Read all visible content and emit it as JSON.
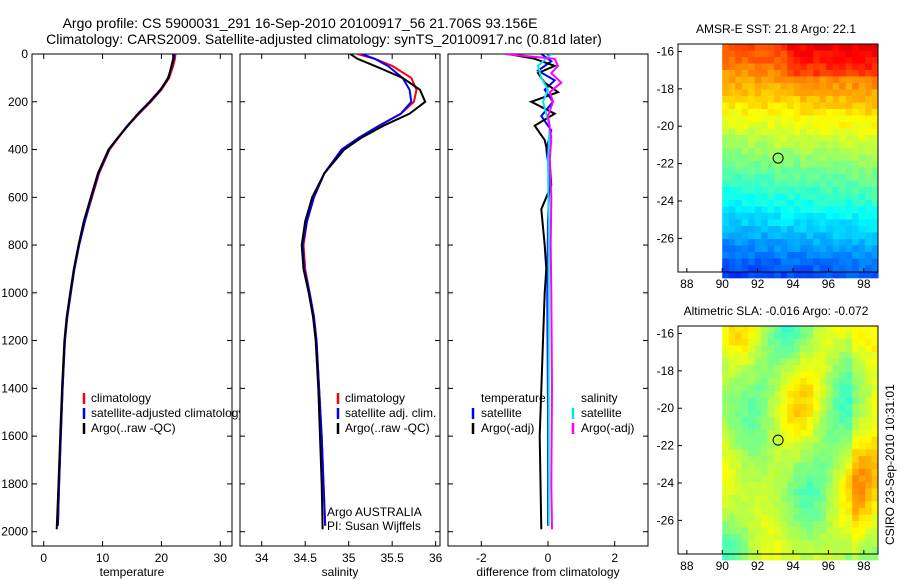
{
  "header": {
    "line1": "Argo profile: CS 5900031_291 16-Sep-2010 20100917_56 21.706S 93.156E",
    "line2": "Climatology: CARS2009. Satellite-adjusted climatology: synTS_20100917.nc (0.81d later)"
  },
  "footer_stamp": "CSIRO 23-Sep-2010 10:31:01",
  "colors": {
    "climatology": "#ff0000",
    "satellite": "#0000ff",
    "argo": "#000000",
    "satellite_salinity_diff": "#00e5e5",
    "argo_salinity_diff": "#ff00ff"
  },
  "chart_data": [
    {
      "id": "temperature",
      "type": "line",
      "xlabel": "temperature",
      "xlim": [
        -2,
        32
      ],
      "ylim": [
        0,
        2060
      ],
      "y_inverted": true,
      "xticks": [
        0,
        10,
        20,
        30
      ],
      "yticks": [
        0,
        200,
        400,
        600,
        800,
        1000,
        1200,
        1400,
        1600,
        1800,
        2000
      ],
      "legend": [
        "climatology",
        "satellite-adjusted climatology",
        "Argo(..raw -QC)"
      ],
      "series": [
        {
          "name": "climatology",
          "color": "#ff0000",
          "x": [
            22.4,
            22.3,
            22.0,
            21.3,
            20.0,
            18.2,
            16.2,
            14.3,
            12.7,
            11.2,
            9.4,
            8.2,
            7.0,
            6.0,
            5.2,
            4.6,
            4.0,
            3.6,
            3.2,
            2.9,
            2.6,
            2.4
          ],
          "y": [
            0,
            20,
            50,
            100,
            150,
            200,
            250,
            300,
            350,
            400,
            500,
            600,
            700,
            800,
            900,
            1000,
            1100,
            1200,
            1400,
            1600,
            1800,
            1975
          ]
        },
        {
          "name": "satellite-adjusted climatology",
          "color": "#0000ff",
          "x": [
            22.2,
            22.1,
            21.8,
            21.1,
            19.9,
            18.1,
            16.1,
            14.2,
            12.6,
            11.1,
            9.3,
            8.1,
            7.0,
            6.0,
            5.2,
            4.6,
            4.0,
            3.6,
            3.2,
            2.9,
            2.6,
            2.4
          ],
          "y": [
            0,
            20,
            50,
            100,
            150,
            200,
            250,
            300,
            350,
            400,
            500,
            600,
            700,
            800,
            900,
            1000,
            1100,
            1200,
            1400,
            1600,
            1800,
            1975
          ]
        },
        {
          "name": "Argo(..raw -QC)",
          "color": "#000000",
          "x": [
            22.0,
            22.0,
            21.7,
            21.2,
            19.8,
            18.0,
            16.0,
            14.3,
            12.6,
            11.0,
            9.2,
            8.0,
            6.8,
            5.9,
            5.1,
            4.5,
            3.9,
            3.5,
            3.1,
            2.8,
            2.5,
            2.2
          ],
          "y": [
            0,
            20,
            50,
            100,
            150,
            200,
            250,
            300,
            350,
            400,
            500,
            600,
            700,
            800,
            900,
            1000,
            1100,
            1200,
            1400,
            1600,
            1800,
            1990
          ]
        }
      ]
    },
    {
      "id": "salinity",
      "type": "line",
      "xlabel": "salinity",
      "xlim": [
        33.75,
        36.05
      ],
      "ylim": [
        0,
        2060
      ],
      "y_inverted": true,
      "xticks": [
        34,
        34.5,
        35,
        35.5,
        36
      ],
      "yticks": [
        0,
        200,
        400,
        600,
        800,
        1000,
        1200,
        1400,
        1600,
        1800,
        2000
      ],
      "legend": [
        "climatology",
        "satellite adj. clim.",
        "Argo(..raw -QC)"
      ],
      "annotation": [
        "Argo AUSTRALIA",
        "PI: Susan Wijffels"
      ],
      "series": [
        {
          "name": "climatology",
          "color": "#ff0000",
          "x": [
            35.1,
            35.3,
            35.5,
            35.72,
            35.78,
            35.75,
            35.6,
            35.35,
            35.12,
            34.92,
            34.72,
            34.6,
            34.52,
            34.48,
            34.5,
            34.55,
            34.6,
            34.63,
            34.66,
            34.69,
            34.71,
            34.73
          ],
          "y": [
            0,
            20,
            50,
            100,
            150,
            200,
            250,
            300,
            350,
            400,
            500,
            600,
            700,
            800,
            900,
            1000,
            1100,
            1200,
            1400,
            1600,
            1800,
            1975
          ]
        },
        {
          "name": "satellite adj. clim.",
          "color": "#0000ff",
          "x": [
            35.15,
            35.3,
            35.45,
            35.62,
            35.7,
            35.72,
            35.6,
            35.35,
            35.12,
            34.92,
            34.72,
            34.6,
            34.52,
            34.47,
            34.49,
            34.55,
            34.6,
            34.63,
            34.66,
            34.69,
            34.71,
            34.73
          ],
          "y": [
            0,
            20,
            50,
            100,
            150,
            200,
            250,
            300,
            350,
            400,
            500,
            600,
            700,
            800,
            900,
            1000,
            1100,
            1200,
            1400,
            1600,
            1800,
            1975
          ]
        },
        {
          "name": "Argo(..raw -QC)",
          "color": "#000000",
          "x": [
            35.02,
            35.1,
            35.3,
            35.62,
            35.82,
            35.88,
            35.7,
            35.4,
            35.15,
            34.95,
            34.72,
            34.58,
            34.5,
            34.46,
            34.48,
            34.54,
            34.59,
            34.62,
            34.65,
            34.67,
            34.69,
            34.7
          ],
          "y": [
            0,
            20,
            50,
            100,
            150,
            200,
            250,
            300,
            350,
            400,
            500,
            600,
            700,
            800,
            900,
            1000,
            1100,
            1200,
            1400,
            1600,
            1800,
            1990
          ]
        }
      ]
    },
    {
      "id": "difference",
      "type": "line",
      "xlabel": "difference from climatology",
      "xlim": [
        -3,
        3
      ],
      "ylim": [
        0,
        2060
      ],
      "y_inverted": true,
      "xticks": [
        -2,
        0,
        2
      ],
      "yticks": [
        0,
        200,
        400,
        600,
        800,
        1000,
        1200,
        1400,
        1600,
        1800,
        2000
      ],
      "legend_groups": [
        {
          "title": "temperature",
          "entries": [
            "satellite",
            "Argo(-adj)"
          ]
        },
        {
          "title": "salinity",
          "entries": [
            "satellite",
            "Argo(-adj)"
          ]
        }
      ],
      "series": [
        {
          "name": "temperature satellite",
          "color": "#0000ff",
          "x": [
            -0.2,
            0.1,
            -0.3,
            0.2,
            -0.1,
            0.15,
            -0.2,
            0.1,
            -0.05,
            0.05,
            0.0,
            -0.02,
            0.0,
            0.0
          ],
          "y": [
            0,
            30,
            70,
            110,
            150,
            200,
            260,
            320,
            400,
            500,
            700,
            1000,
            1500,
            1975
          ]
        },
        {
          "name": "temperature Argo(-adj)",
          "color": "#000000",
          "x": [
            -1.2,
            -0.4,
            0.2,
            -0.3,
            -0.1,
            0.3,
            -0.5,
            0.2,
            -0.4,
            -0.1,
            0.05,
            0.1,
            -0.2,
            -0.1,
            -0.05,
            -0.1,
            -0.15,
            -0.25,
            -0.2
          ],
          "y": [
            0,
            20,
            50,
            80,
            120,
            160,
            200,
            250,
            300,
            360,
            450,
            550,
            650,
            800,
            900,
            1000,
            1200,
            1600,
            1990
          ]
        },
        {
          "name": "salinity satellite",
          "color": "#00e5e5",
          "x": [
            0.1,
            -0.3,
            -0.2,
            0.0,
            -0.15,
            0.05,
            0.0,
            0.02,
            0.02,
            0.02
          ],
          "y": [
            0,
            50,
            100,
            150,
            200,
            300,
            450,
            700,
            1200,
            1975
          ]
        },
        {
          "name": "salinity Argo(-adj)",
          "color": "#ff00ff",
          "x": [
            -1.3,
            0.2,
            0.3,
            0.1,
            0.4,
            0.05,
            0.15,
            0.0,
            0.1,
            0.05,
            0.1,
            0.08,
            0.1,
            0.12,
            0.1,
            0.12
          ],
          "y": [
            0,
            20,
            50,
            80,
            120,
            160,
            200,
            260,
            350,
            450,
            600,
            800,
            1000,
            1400,
            1800,
            1990
          ]
        }
      ]
    },
    {
      "id": "sst_map",
      "type": "heatmap",
      "title": "AMSR-E SST: 21.8 Argo: 22.1",
      "xlim": [
        87.5,
        98.8
      ],
      "ylim": [
        -27.8,
        -15.6
      ],
      "xticks": [
        88,
        90,
        92,
        94,
        96,
        98
      ],
      "yticks": [
        -16,
        -18,
        -20,
        -22,
        -24,
        -26
      ],
      "data_xlim": [
        90,
        98.8
      ],
      "marker": {
        "lon": 93.156,
        "lat": -21.706
      }
    },
    {
      "id": "sla_map",
      "type": "heatmap",
      "title": "Altimetric SLA: -0.016 Argo: -0.072",
      "xlim": [
        87.5,
        98.8
      ],
      "ylim": [
        -27.8,
        -15.6
      ],
      "xticks": [
        88,
        90,
        92,
        94,
        96,
        98
      ],
      "yticks": [
        -16,
        -18,
        -20,
        -22,
        -24,
        -26
      ],
      "data_xlim": [
        90,
        98.8
      ],
      "marker": {
        "lon": 93.156,
        "lat": -21.706
      }
    }
  ]
}
